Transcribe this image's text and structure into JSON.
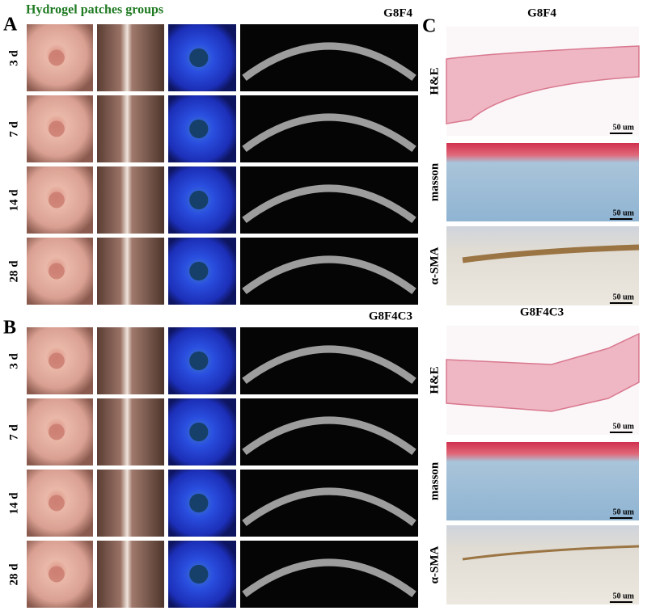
{
  "title": "Hydrogel patches groups",
  "panels": [
    {
      "label": "A",
      "group": "G8F4",
      "rows": [
        "3 d",
        "7 d",
        "14 d",
        "28 d"
      ]
    },
    {
      "label": "B",
      "group": "G8F4C3",
      "rows": [
        "3 d",
        "7 d",
        "14 d",
        "28 d"
      ]
    },
    {
      "label": "C",
      "sections": [
        {
          "group": "G8F4",
          "stains": [
            {
              "name": "H&E",
              "scale": "50 um"
            },
            {
              "name": "masson",
              "scale": "50 um"
            },
            {
              "name": "α-SMA",
              "scale": "50 um"
            }
          ]
        },
        {
          "group": "G8F4C3",
          "stains": [
            {
              "name": "H&E",
              "scale": "50 um"
            },
            {
              "name": "masson",
              "scale": "50 um"
            },
            {
              "name": "α-SMA",
              "scale": "50 um"
            }
          ]
        }
      ]
    }
  ]
}
